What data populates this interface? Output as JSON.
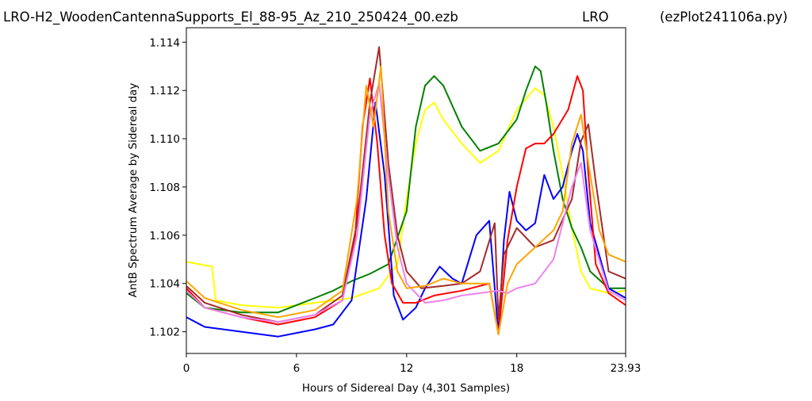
{
  "chart_data": {
    "type": "line",
    "title_left": "LRO-H2_WoodenCantennaSupports_El_88-95_Az_210_250424_00.ezb",
    "title_center": "LRO",
    "title_right": "(ezPlot241106a.py)",
    "xlabel": "Hours of Sidereal Day  (4,301 Samples)",
    "ylabel": "AntB Spectrum Average by Sidereal day",
    "xlim": [
      0,
      23.93
    ],
    "ylim": [
      1.1011,
      1.1146
    ],
    "xticks": [
      "0",
      "6",
      "12",
      "18",
      "23.93"
    ],
    "xtick_values": [
      0,
      6,
      12,
      18,
      23.93
    ],
    "yticks": [
      "1.102",
      "1.104",
      "1.106",
      "1.108",
      "1.110",
      "1.112",
      "1.114"
    ],
    "ytick_values": [
      1.102,
      1.104,
      1.106,
      1.108,
      1.11,
      1.112,
      1.114
    ],
    "grid": false,
    "series": [
      {
        "color": "#ffff00",
        "x": [
          0,
          1.4,
          1.6,
          3,
          5,
          7,
          9,
          10.5,
          11.5,
          12,
          12.5,
          13,
          13.5,
          14,
          15,
          16,
          17,
          18,
          19,
          19.5,
          20,
          20.5,
          21,
          21.5,
          22,
          23,
          23.93
        ],
        "y": [
          1.1049,
          1.1047,
          1.1033,
          1.1031,
          1.103,
          1.1032,
          1.1034,
          1.1038,
          1.1048,
          1.1075,
          1.1098,
          1.1112,
          1.1115,
          1.1108,
          1.1098,
          1.109,
          1.1095,
          1.1112,
          1.1121,
          1.1118,
          1.1105,
          1.1085,
          1.1063,
          1.1045,
          1.1038,
          1.1036,
          1.1037
        ]
      },
      {
        "color": "#008000",
        "x": [
          0,
          1,
          3,
          5,
          6,
          7,
          8,
          9,
          10,
          11,
          12,
          12.5,
          13,
          13.5,
          14,
          15,
          16,
          17,
          18,
          18.5,
          19,
          19.3,
          19.6,
          20,
          20.5,
          21,
          21.5,
          22,
          23,
          23.93
        ],
        "y": [
          1.1036,
          1.103,
          1.1028,
          1.1028,
          1.1031,
          1.1034,
          1.1037,
          1.1041,
          1.1044,
          1.1048,
          1.107,
          1.1105,
          1.1122,
          1.1126,
          1.1122,
          1.1105,
          1.1095,
          1.1098,
          1.1108,
          1.112,
          1.113,
          1.1128,
          1.1115,
          1.1095,
          1.1075,
          1.1063,
          1.1055,
          1.1045,
          1.1038,
          1.1038
        ]
      },
      {
        "color": "#0000ff",
        "x": [
          0,
          1,
          3,
          5,
          7,
          8,
          9,
          9.8,
          10.3,
          10.8,
          11.3,
          11.8,
          12.5,
          13,
          13.8,
          14.5,
          15,
          15.8,
          16.5,
          17,
          17.3,
          17.6,
          18,
          18.5,
          19,
          19.5,
          20,
          20.5,
          21,
          21.3,
          21.6,
          22,
          23,
          23.93
        ],
        "y": [
          1.1026,
          1.1022,
          1.102,
          1.1018,
          1.1021,
          1.1023,
          1.1033,
          1.1075,
          1.1115,
          1.1085,
          1.1035,
          1.1025,
          1.103,
          1.1038,
          1.1047,
          1.1042,
          1.104,
          1.106,
          1.1066,
          1.1019,
          1.1058,
          1.1078,
          1.1066,
          1.1062,
          1.1065,
          1.1085,
          1.1075,
          1.108,
          1.1095,
          1.1102,
          1.1095,
          1.1065,
          1.1038,
          1.1034
        ]
      },
      {
        "color": "#ff0000",
        "x": [
          0,
          1,
          3,
          5,
          7,
          8.5,
          9.2,
          9.6,
          10,
          10.4,
          10.8,
          11.2,
          11.8,
          12.5,
          13.5,
          15,
          16.5,
          17,
          17.5,
          18,
          18.5,
          19,
          19.5,
          20,
          20.8,
          21.3,
          21.6,
          21.9,
          22.3,
          23,
          23.93
        ],
        "y": [
          1.1038,
          1.103,
          1.1026,
          1.1023,
          1.1026,
          1.1033,
          1.106,
          1.1105,
          1.1125,
          1.1098,
          1.106,
          1.104,
          1.1032,
          1.1032,
          1.1035,
          1.1037,
          1.104,
          1.1019,
          1.1058,
          1.108,
          1.1096,
          1.1098,
          1.1098,
          1.1102,
          1.1112,
          1.1126,
          1.112,
          1.1085,
          1.1048,
          1.1036,
          1.1031
        ]
      },
      {
        "color": "#a52a2a",
        "x": [
          0,
          1,
          3,
          5,
          7,
          8.5,
          9.3,
          10,
          10.5,
          11,
          11.5,
          12,
          12.8,
          14,
          15,
          16,
          16.8,
          17,
          17.3,
          18,
          19,
          20,
          21,
          21.5,
          21.9,
          22.3,
          23,
          23.93
        ],
        "y": [
          1.1039,
          1.1032,
          1.1027,
          1.1024,
          1.1027,
          1.1035,
          1.1065,
          1.1115,
          1.1138,
          1.109,
          1.106,
          1.1045,
          1.1038,
          1.1039,
          1.104,
          1.1045,
          1.1065,
          1.1025,
          1.1052,
          1.1063,
          1.1055,
          1.1058,
          1.1075,
          1.1099,
          1.1106,
          1.1082,
          1.1045,
          1.1042
        ]
      },
      {
        "color": "#ee82ee",
        "x": [
          0,
          1,
          3,
          5,
          7,
          8.5,
          9.3,
          10,
          10.5,
          11,
          11.5,
          12,
          13,
          14,
          15,
          16,
          17,
          17.5,
          18,
          19,
          20,
          20.5,
          21,
          21.5,
          22,
          23,
          23.93
        ],
        "y": [
          1.1037,
          1.103,
          1.1026,
          1.1024,
          1.1027,
          1.1033,
          1.106,
          1.111,
          1.1123,
          1.1085,
          1.1055,
          1.104,
          1.1032,
          1.1033,
          1.1035,
          1.1036,
          1.1037,
          1.1036,
          1.1038,
          1.104,
          1.105,
          1.1065,
          1.108,
          1.109,
          1.1062,
          1.1037,
          1.1033
        ]
      },
      {
        "color": "#ffa500",
        "x": [
          0,
          1,
          3,
          5,
          7,
          8.5,
          9.3,
          9.8,
          10.2,
          10.6,
          11,
          11.5,
          12,
          13,
          14,
          15,
          16,
          16.5,
          17,
          17.5,
          18,
          19,
          20,
          20.5,
          21,
          21.5,
          22,
          22.5,
          23,
          23.93
        ],
        "y": [
          1.1041,
          1.1034,
          1.1029,
          1.1026,
          1.1029,
          1.1037,
          1.1075,
          1.1122,
          1.1105,
          1.113,
          1.107,
          1.1045,
          1.1038,
          1.1039,
          1.1042,
          1.104,
          1.104,
          1.104,
          1.1019,
          1.104,
          1.1048,
          1.1055,
          1.1062,
          1.107,
          1.1098,
          1.111,
          1.1085,
          1.1062,
          1.1052,
          1.1049
        ]
      }
    ]
  }
}
